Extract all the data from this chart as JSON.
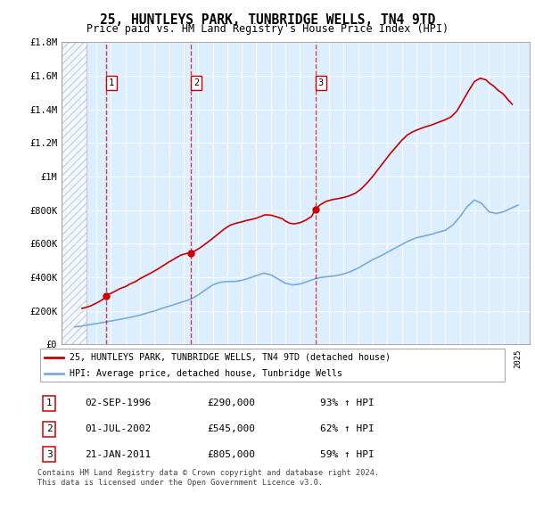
{
  "title": "25, HUNTLEYS PARK, TUNBRIDGE WELLS, TN4 9TD",
  "subtitle": "Price paid vs. HM Land Registry's House Price Index (HPI)",
  "ylim": [
    0,
    1800000
  ],
  "yticks": [
    0,
    200000,
    400000,
    600000,
    800000,
    1000000,
    1200000,
    1400000,
    1600000,
    1800000
  ],
  "ytick_labels": [
    "£0",
    "£200K",
    "£400K",
    "£600K",
    "£800K",
    "£1M",
    "£1.2M",
    "£1.4M",
    "£1.6M",
    "£1.8M"
  ],
  "xlim_start": 1993.6,
  "xlim_end": 2025.8,
  "hatch_end": 1995.3,
  "sale_dates": [
    1996.67,
    2002.5,
    2011.07
  ],
  "sale_prices": [
    290000,
    545000,
    805000
  ],
  "sale_labels": [
    "1",
    "2",
    "3"
  ],
  "sale_date_strings": [
    "02-SEP-1996",
    "01-JUL-2002",
    "21-JAN-2011"
  ],
  "sale_price_strings": [
    "£290,000",
    "£545,000",
    "£805,000"
  ],
  "sale_hpi_strings": [
    "93% ↑ HPI",
    "62% ↑ HPI",
    "59% ↑ HPI"
  ],
  "red_line_color": "#cc0000",
  "blue_line_color": "#7aaadd",
  "background_color": "#ddeeff",
  "grid_color": "#ffffff",
  "legend_label_red": "25, HUNTLEYS PARK, TUNBRIDGE WELLS, TN4 9TD (detached house)",
  "legend_label_blue": "HPI: Average price, detached house, Tunbridge Wells",
  "footer": "Contains HM Land Registry data © Crown copyright and database right 2024.\nThis data is licensed under the Open Government Licence v3.0.",
  "hpi_years": [
    1994.5,
    1995.0,
    1995.5,
    1996.0,
    1996.5,
    1997.0,
    1997.5,
    1998.0,
    1998.5,
    1999.0,
    1999.5,
    2000.0,
    2000.5,
    2001.0,
    2001.5,
    2002.0,
    2002.5,
    2003.0,
    2003.5,
    2004.0,
    2004.5,
    2005.0,
    2005.5,
    2006.0,
    2006.5,
    2007.0,
    2007.5,
    2008.0,
    2008.5,
    2009.0,
    2009.5,
    2010.0,
    2010.5,
    2011.0,
    2011.5,
    2012.0,
    2012.5,
    2013.0,
    2013.5,
    2014.0,
    2014.5,
    2015.0,
    2015.5,
    2016.0,
    2016.5,
    2017.0,
    2017.5,
    2018.0,
    2018.5,
    2019.0,
    2019.5,
    2020.0,
    2020.5,
    2021.0,
    2021.5,
    2022.0,
    2022.5,
    2023.0,
    2023.5,
    2024.0,
    2024.5,
    2025.0
  ],
  "hpi_values": [
    105000,
    110000,
    118000,
    125000,
    132000,
    140000,
    148000,
    156000,
    165000,
    175000,
    188000,
    200000,
    215000,
    228000,
    242000,
    256000,
    270000,
    295000,
    325000,
    355000,
    370000,
    375000,
    375000,
    382000,
    395000,
    410000,
    425000,
    415000,
    390000,
    365000,
    355000,
    360000,
    375000,
    390000,
    400000,
    405000,
    410000,
    420000,
    435000,
    455000,
    480000,
    505000,
    525000,
    548000,
    572000,
    595000,
    618000,
    635000,
    645000,
    655000,
    668000,
    680000,
    710000,
    760000,
    820000,
    860000,
    840000,
    790000,
    780000,
    790000,
    810000,
    830000
  ],
  "red_years": [
    1995.0,
    1995.3,
    1995.6,
    1995.9,
    1996.2,
    1996.5,
    1996.67,
    1997.0,
    1997.3,
    1997.6,
    1998.0,
    1998.3,
    1998.7,
    1999.0,
    1999.4,
    1999.8,
    2000.2,
    2000.6,
    2001.0,
    2001.4,
    2001.8,
    2002.2,
    2002.5,
    2002.8,
    2003.2,
    2003.6,
    2004.0,
    2004.4,
    2004.8,
    2005.2,
    2005.6,
    2006.0,
    2006.3,
    2006.7,
    2007.0,
    2007.3,
    2007.6,
    2008.0,
    2008.4,
    2008.8,
    2009.0,
    2009.3,
    2009.6,
    2010.0,
    2010.4,
    2010.8,
    2011.07,
    2011.4,
    2011.8,
    2012.2,
    2012.6,
    2013.0,
    2013.4,
    2013.8,
    2014.2,
    2014.6,
    2015.0,
    2015.4,
    2015.8,
    2016.2,
    2016.6,
    2017.0,
    2017.4,
    2017.8,
    2018.2,
    2018.6,
    2019.0,
    2019.3,
    2019.6,
    2020.0,
    2020.4,
    2020.8,
    2021.2,
    2021.6,
    2022.0,
    2022.4,
    2022.8,
    2023.0,
    2023.3,
    2023.6,
    2024.0,
    2024.3,
    2024.6
  ],
  "red_values": [
    215000,
    222000,
    230000,
    242000,
    256000,
    272000,
    290000,
    305000,
    318000,
    332000,
    345000,
    360000,
    375000,
    392000,
    410000,
    428000,
    448000,
    470000,
    492000,
    512000,
    532000,
    542000,
    545000,
    558000,
    580000,
    605000,
    632000,
    660000,
    688000,
    710000,
    722000,
    730000,
    738000,
    745000,
    752000,
    762000,
    772000,
    770000,
    760000,
    748000,
    735000,
    722000,
    718000,
    725000,
    740000,
    762000,
    805000,
    832000,
    852000,
    862000,
    868000,
    875000,
    885000,
    900000,
    925000,
    960000,
    1000000,
    1045000,
    1090000,
    1135000,
    1175000,
    1215000,
    1248000,
    1268000,
    1282000,
    1295000,
    1305000,
    1315000,
    1325000,
    1338000,
    1355000,
    1390000,
    1450000,
    1510000,
    1565000,
    1585000,
    1575000,
    1558000,
    1540000,
    1515000,
    1490000,
    1458000,
    1430000
  ]
}
